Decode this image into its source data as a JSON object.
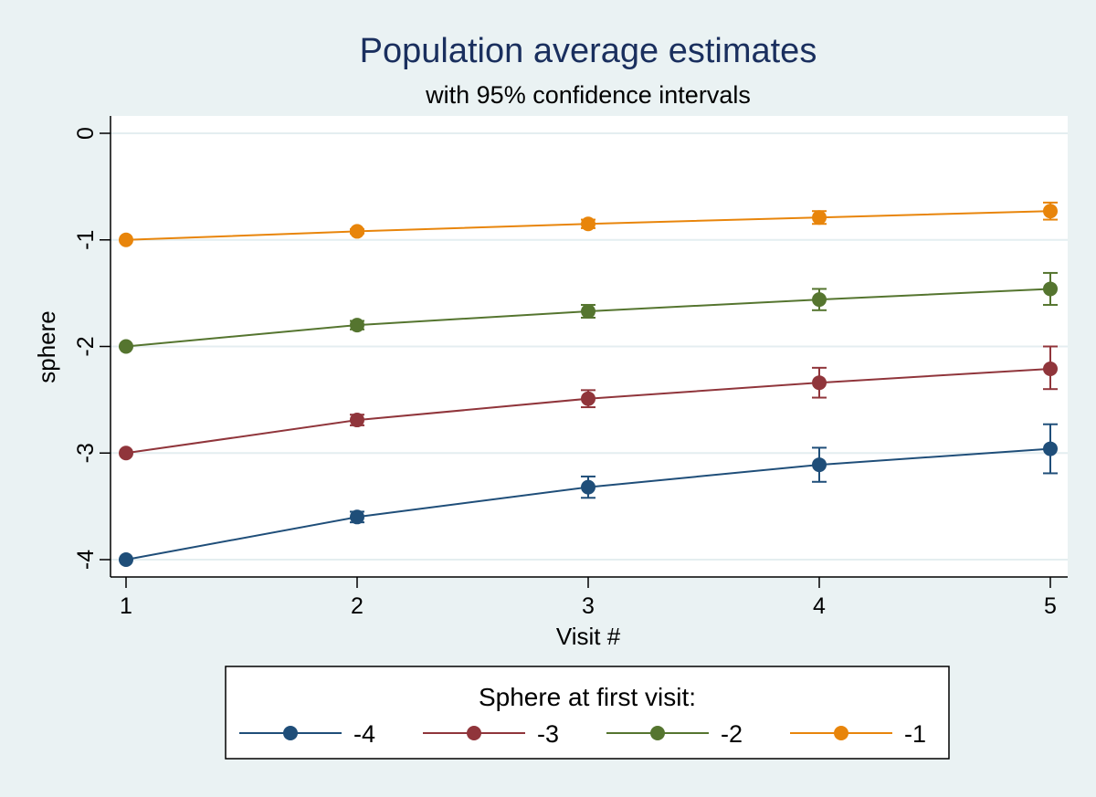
{
  "chart_data": {
    "type": "line",
    "title": "Population average estimates",
    "subtitle": "with 95% confidence intervals",
    "xlabel": "Visit #",
    "ylabel": "sphere",
    "x": [
      1,
      2,
      3,
      4,
      5
    ],
    "xticks": [
      "1",
      "2",
      "3",
      "4",
      "5"
    ],
    "yticks": [
      "0",
      "-1",
      "-2",
      "-3",
      "-4"
    ],
    "yticks_values": [
      0,
      -1,
      -2,
      -3,
      -4
    ],
    "xlim": [
      1,
      5
    ],
    "ylim": [
      -4.15,
      0.15
    ],
    "grid": true,
    "legend": {
      "title": "Sphere at first visit:",
      "placement": "bottom"
    },
    "series": [
      {
        "name": "-4",
        "color": "#1f4e79",
        "values": [
          -4.0,
          -3.6,
          -3.32,
          -3.11,
          -2.96
        ],
        "ci_low": [
          -4.0,
          -3.65,
          -3.42,
          -3.27,
          -3.19
        ],
        "ci_high": [
          -4.0,
          -3.55,
          -3.22,
          -2.95,
          -2.73
        ]
      },
      {
        "name": "-3",
        "color": "#90353b",
        "values": [
          -3.0,
          -2.69,
          -2.49,
          -2.34,
          -2.21
        ],
        "ci_low": [
          -3.0,
          -2.74,
          -2.57,
          -2.48,
          -2.4
        ],
        "ci_high": [
          -3.0,
          -2.64,
          -2.41,
          -2.2,
          -2.0
        ]
      },
      {
        "name": "-2",
        "color": "#55752f",
        "values": [
          -2.0,
          -1.8,
          -1.67,
          -1.56,
          -1.46
        ],
        "ci_low": [
          -2.0,
          -1.84,
          -1.73,
          -1.66,
          -1.61
        ],
        "ci_high": [
          -2.0,
          -1.76,
          -1.61,
          -1.46,
          -1.31
        ]
      },
      {
        "name": "-1",
        "color": "#e8850b",
        "values": [
          -1.0,
          -0.92,
          -0.85,
          -0.79,
          -0.73
        ],
        "ci_low": [
          -1.0,
          -0.94,
          -0.89,
          -0.85,
          -0.81
        ],
        "ci_high": [
          -1.0,
          -0.9,
          -0.81,
          -0.73,
          -0.65
        ]
      }
    ]
  }
}
